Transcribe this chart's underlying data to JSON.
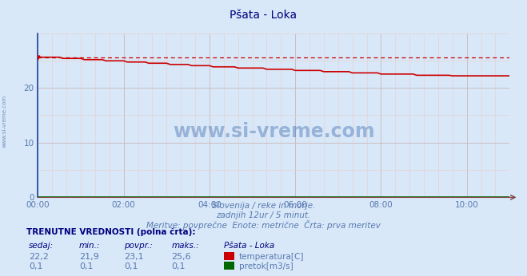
{
  "title": "Pšata - Loka",
  "bg_color": "#d8e8f8",
  "plot_bg_color": "#d8e8f8",
  "grid_color_major": "#c8b8b8",
  "grid_color_minor": "#e8d0d0",
  "x_ticks_labels": [
    "00:00",
    "02:00",
    "04:00",
    "06:00",
    "08:00",
    "10:00"
  ],
  "x_ticks_pos": [
    0,
    24,
    48,
    72,
    96,
    120
  ],
  "y_ticks": [
    0,
    10,
    20
  ],
  "ylim": [
    0,
    30
  ],
  "xlim": [
    0,
    132
  ],
  "temp_color": "#cc0000",
  "flow_color": "#006600",
  "dashed_color": "#cc0000",
  "temp_start": 25.6,
  "temp_end": 22.2,
  "temp_min": 21.9,
  "temp_max": 25.6,
  "temp_avg": 23.1,
  "temp_current": 22.2,
  "flow_value": 0.1,
  "n_points": 133,
  "subtitle1": "Slovenija / reke in morje.",
  "subtitle2": "zadnjih 12ur / 5 minut.",
  "subtitle3": "Meritve: povprečne  Enote: metrične  Črta: prva meritev",
  "watermark": "www.si-vreme.com",
  "table_title": "TRENUTNE VREDNOSTI (polna črta):",
  "col_headers": [
    "sedaj:",
    "min.:",
    "povpr.:",
    "maks.:",
    "Pšata - Loka"
  ],
  "row_temp": [
    "22,2",
    "21,9",
    "23,1",
    "25,6",
    "temperatura[C]"
  ],
  "row_flow": [
    "0,1",
    "0,1",
    "0,1",
    "0,1",
    "pretok[m3/s]"
  ],
  "title_color": "#000080",
  "label_color": "#5878b0",
  "axis_color": "#2040a0",
  "table_header_color": "#000080",
  "table_val_color": "#5878b0",
  "left_spine_color": "#2040a0",
  "bottom_spine_color": "#804040"
}
